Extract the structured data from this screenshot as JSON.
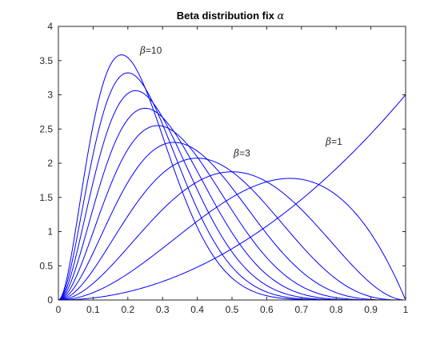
{
  "chart_data": {
    "type": "line",
    "title": "Beta distribution fix α",
    "title_parts": {
      "text": "Beta distribution fix ",
      "symbol": "α"
    },
    "xlabel": "",
    "ylabel": "",
    "xlim": [
      0,
      1
    ],
    "ylim": [
      0,
      4
    ],
    "xticks": [
      0,
      0.1,
      0.2,
      0.3,
      0.4,
      0.5,
      0.6,
      0.7,
      0.8,
      0.9,
      1
    ],
    "xtick_labels": [
      "0",
      "0.1",
      "0.2",
      "0.3",
      "0.4",
      "0.5",
      "0.6",
      "0.7",
      "0.8",
      "0.9",
      "1"
    ],
    "yticks": [
      0,
      0.5,
      1,
      1.5,
      2,
      2.5,
      3,
      3.5,
      4
    ],
    "ytick_labels": [
      "0",
      "0.5",
      "1",
      "1.5",
      "2",
      "2.5",
      "3",
      "3.5",
      "4"
    ],
    "grid": false,
    "line_color": "#0000ff",
    "alpha": 3,
    "series": [
      {
        "beta": 1
      },
      {
        "beta": 2
      },
      {
        "beta": 3
      },
      {
        "beta": 4
      },
      {
        "beta": 5
      },
      {
        "beta": 6
      },
      {
        "beta": 7
      },
      {
        "beta": 8
      },
      {
        "beta": 9
      },
      {
        "beta": 10
      }
    ],
    "annotations": [
      {
        "symbol": "β",
        "text": "=10",
        "x": 0.235,
        "y": 3.6
      },
      {
        "symbol": "β",
        "text": "=3",
        "x": 0.505,
        "y": 2.1
      },
      {
        "symbol": "β",
        "text": "=1",
        "x": 0.77,
        "y": 2.27
      }
    ]
  }
}
